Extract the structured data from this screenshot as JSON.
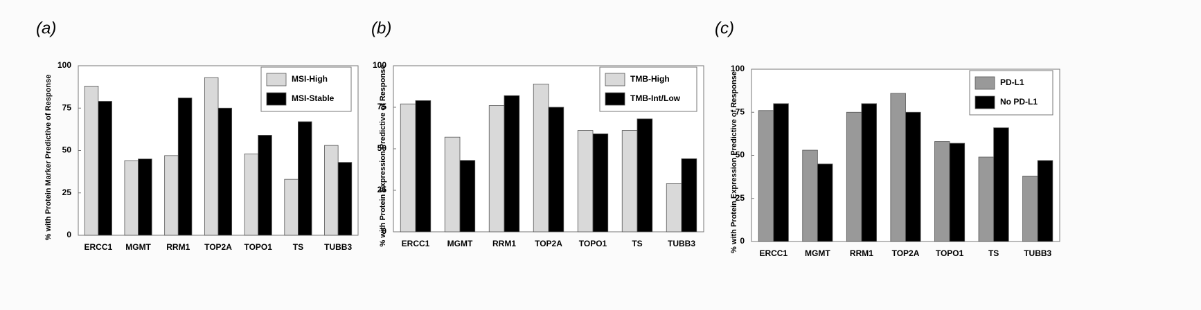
{
  "chart_data": [
    {
      "type": "bar",
      "panel_label": "(a)",
      "y_label": "% with Protein Marker Predictive of Response",
      "categories": [
        "ERCC1",
        "MGMT",
        "RRM1",
        "TOP2A",
        "TOPO1",
        "TS",
        "TUBB3"
      ],
      "series": [
        {
          "name": "MSI-High",
          "color": "#d9d9d9",
          "values": [
            88,
            44,
            47,
            93,
            48,
            33,
            53
          ]
        },
        {
          "name": "MSI-Stable",
          "color": "#000000",
          "values": [
            79,
            45,
            81,
            75,
            59,
            67,
            43
          ]
        }
      ],
      "ylim": [
        0,
        100
      ],
      "yticks": [
        0,
        25,
        50,
        75,
        100
      ],
      "legend": "upper right"
    },
    {
      "type": "bar",
      "panel_label": "(b)",
      "y_label": "% with Protein Expression Predictive of Response",
      "categories": [
        "ERCC1",
        "MGMT",
        "RRM1",
        "TOP2A",
        "TOPO1",
        "TS",
        "TUBB3"
      ],
      "series": [
        {
          "name": "TMB-High",
          "color": "#d9d9d9",
          "values": [
            77,
            57,
            76,
            89,
            61,
            61,
            29
          ]
        },
        {
          "name": "TMB-Int/Low",
          "color": "#000000",
          "values": [
            79,
            43,
            82,
            75,
            59,
            68,
            44
          ]
        }
      ],
      "ylim": [
        0,
        100
      ],
      "yticks": [
        0,
        25,
        50,
        75,
        100
      ],
      "legend": "upper right"
    },
    {
      "type": "bar",
      "panel_label": "(c)",
      "y_label": "% with Protein Expression Predictive of Response",
      "categories": [
        "ERCC1",
        "MGMT",
        "RRM1",
        "TOP2A",
        "TOPO1",
        "TS",
        "TUBB3"
      ],
      "series": [
        {
          "name": "PD-L1",
          "color": "#999999",
          "values": [
            76,
            53,
            75,
            86,
            58,
            49,
            38
          ]
        },
        {
          "name": "No PD-L1",
          "color": "#000000",
          "values": [
            80,
            45,
            80,
            75,
            57,
            66,
            47
          ]
        }
      ],
      "ylim": [
        0,
        100
      ],
      "yticks": [
        0,
        25,
        50,
        75,
        100
      ],
      "legend": "upper right"
    }
  ]
}
